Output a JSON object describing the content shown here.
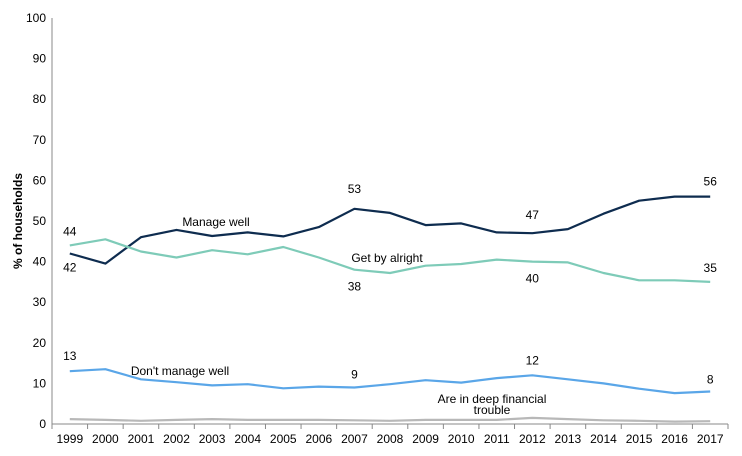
{
  "chart_data": {
    "type": "line",
    "title": "",
    "xlabel": "",
    "ylabel": "% of households",
    "ylim": [
      0,
      100
    ],
    "yticks": [
      0,
      10,
      20,
      30,
      40,
      50,
      60,
      70,
      80,
      90,
      100
    ],
    "grid": false,
    "legend": "none",
    "x": [
      "1999",
      "2000",
      "2001",
      "2002",
      "2003",
      "2004",
      "2005",
      "2006",
      "2007",
      "2008",
      "2009",
      "2010",
      "2011",
      "2012",
      "2013",
      "2014",
      "2015",
      "2016",
      "2017"
    ],
    "series": [
      {
        "name": "Manage well",
        "color": "#0e2c4f",
        "values": [
          42,
          39.5,
          46,
          47.8,
          46.3,
          47.2,
          46.2,
          48.5,
          53,
          52,
          49,
          49.4,
          47.2,
          47,
          48,
          51.8,
          55,
          56,
          56
        ]
      },
      {
        "name": "Get by alright",
        "color": "#7ecbb8",
        "values": [
          44,
          45.5,
          42.5,
          41,
          42.8,
          41.8,
          43.6,
          41,
          38,
          37.2,
          39,
          39.4,
          40.5,
          40,
          39.8,
          37.2,
          35.4,
          35.4,
          35
        ]
      },
      {
        "name": "Don't manage well",
        "color": "#5aa6e8",
        "values": [
          13,
          13.5,
          11,
          10.3,
          9.5,
          9.8,
          8.8,
          9.2,
          9,
          9.8,
          10.8,
          10.2,
          11.3,
          12,
          11,
          10,
          8.7,
          7.6,
          8
        ]
      },
      {
        "name": "Are in deep financial trouble",
        "color": "#b8b8b8",
        "values": [
          1.2,
          1,
          0.8,
          1,
          1.2,
          1,
          1,
          1,
          0.9,
          0.8,
          1,
          1,
          1,
          1.5,
          1.2,
          0.9,
          0.8,
          0.6,
          0.7
        ]
      }
    ],
    "data_labels": [
      {
        "series": 0,
        "x": "1999",
        "text": "42"
      },
      {
        "series": 0,
        "x": "2007",
        "text": "53"
      },
      {
        "series": 0,
        "x": "2012",
        "text": "47"
      },
      {
        "series": 0,
        "x": "2017",
        "text": "56"
      },
      {
        "series": 1,
        "x": "1999",
        "text": "44"
      },
      {
        "series": 1,
        "x": "2007",
        "text": "38"
      },
      {
        "series": 1,
        "x": "2012",
        "text": "40"
      },
      {
        "series": 1,
        "x": "2017",
        "text": "35"
      },
      {
        "series": 2,
        "x": "1999",
        "text": "13"
      },
      {
        "series": 2,
        "x": "2007",
        "text": "9"
      },
      {
        "series": 2,
        "x": "2012",
        "text": "12"
      },
      {
        "series": 2,
        "x": "2017",
        "text": "8"
      }
    ],
    "series_labels": [
      {
        "series": 0,
        "lines": [
          "Manage well"
        ]
      },
      {
        "series": 1,
        "lines": [
          "Get by alright"
        ]
      },
      {
        "series": 2,
        "lines": [
          "Don't manage well"
        ]
      },
      {
        "series": 3,
        "lines": [
          "Are in deep financial",
          "trouble"
        ]
      }
    ]
  }
}
